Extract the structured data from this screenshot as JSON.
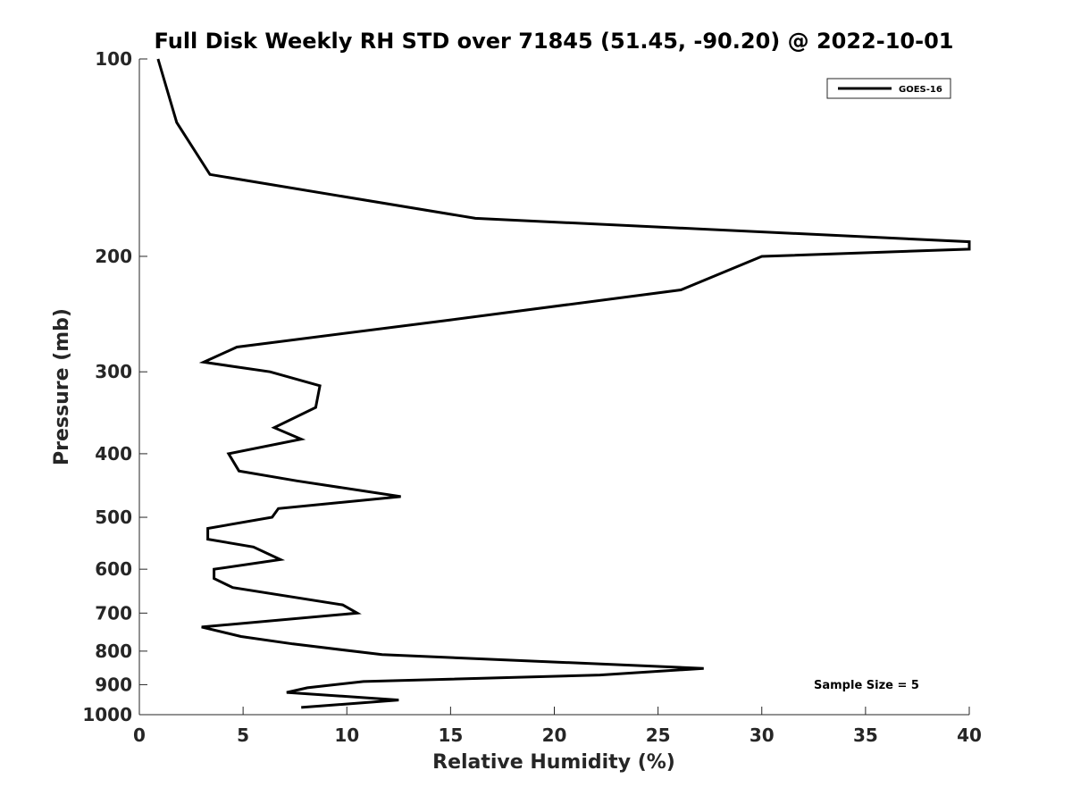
{
  "chart_data": {
    "type": "line",
    "title": "Full Disk Weekly RH STD over 71845 (51.45, -90.20) @ 2022-10-01",
    "xlabel": "Relative Humidity (%)",
    "ylabel": "Pressure (mb)",
    "xlim": [
      0,
      40
    ],
    "ylim": [
      100,
      1000
    ],
    "y_scale": "log",
    "y_reversed": true,
    "x_ticks": [
      0,
      5,
      10,
      15,
      20,
      25,
      30,
      35,
      40
    ],
    "y_ticks": [
      100,
      200,
      300,
      400,
      500,
      600,
      700,
      800,
      900,
      1000
    ],
    "grid": false,
    "legend_position": "top-right",
    "annotation": "Sample Size = 5",
    "series": [
      {
        "name": "GOES-16",
        "color": "#000000",
        "points": [
          [
            0.9,
            100
          ],
          [
            1.8,
            125
          ],
          [
            3.4,
            150
          ],
          [
            16.2,
            175
          ],
          [
            40.0,
            190
          ],
          [
            40.0,
            195
          ],
          [
            30.0,
            200
          ],
          [
            26.1,
            225
          ],
          [
            15.0,
            250
          ],
          [
            4.7,
            275
          ],
          [
            3.1,
            290
          ],
          [
            6.3,
            300
          ],
          [
            8.7,
            315
          ],
          [
            8.5,
            340
          ],
          [
            6.5,
            365
          ],
          [
            7.8,
            380
          ],
          [
            4.3,
            400
          ],
          [
            4.8,
            425
          ],
          [
            7.6,
            440
          ],
          [
            12.6,
            465
          ],
          [
            6.7,
            485
          ],
          [
            6.4,
            500
          ],
          [
            3.3,
            520
          ],
          [
            3.3,
            540
          ],
          [
            5.5,
            555
          ],
          [
            6.8,
            580
          ],
          [
            3.6,
            600
          ],
          [
            3.6,
            620
          ],
          [
            4.5,
            640
          ],
          [
            9.8,
            680
          ],
          [
            10.5,
            700
          ],
          [
            3.0,
            735
          ],
          [
            4.9,
            760
          ],
          [
            7.4,
            780
          ],
          [
            11.7,
            810
          ],
          [
            27.2,
            850
          ],
          [
            22.2,
            870
          ],
          [
            10.8,
            890
          ],
          [
            8.1,
            910
          ],
          [
            7.1,
            925
          ],
          [
            12.5,
            950
          ],
          [
            7.8,
            975
          ]
        ]
      }
    ]
  }
}
